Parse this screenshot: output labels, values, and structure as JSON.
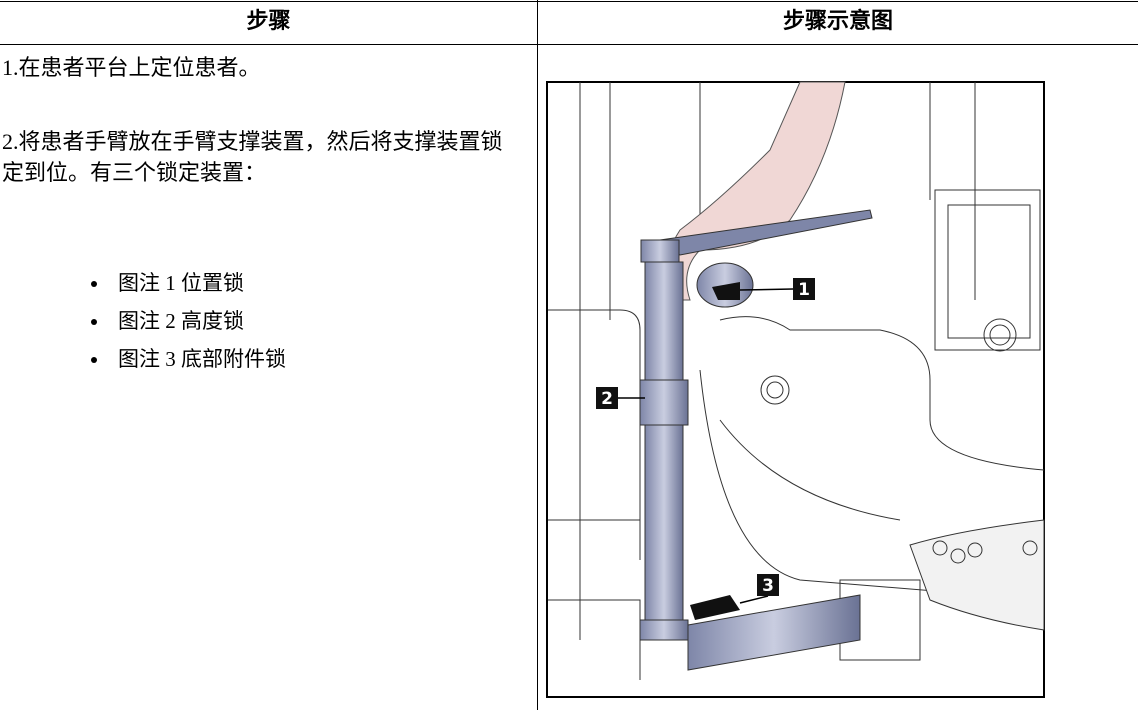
{
  "table": {
    "headers": [
      "步骤",
      "步骤示意图"
    ],
    "steps": [
      "1.在患者平台上定位患者。",
      "2.将患者手臂放在手臂支撑装置，然后将支撑装置锁定到位。有三个锁定装置："
    ],
    "bullets": [
      "图注 1 位置锁",
      "图注 2 高度锁",
      "图注 3 底部附件锁"
    ]
  },
  "figure": {
    "callouts": [
      "1",
      "2",
      "3"
    ]
  }
}
